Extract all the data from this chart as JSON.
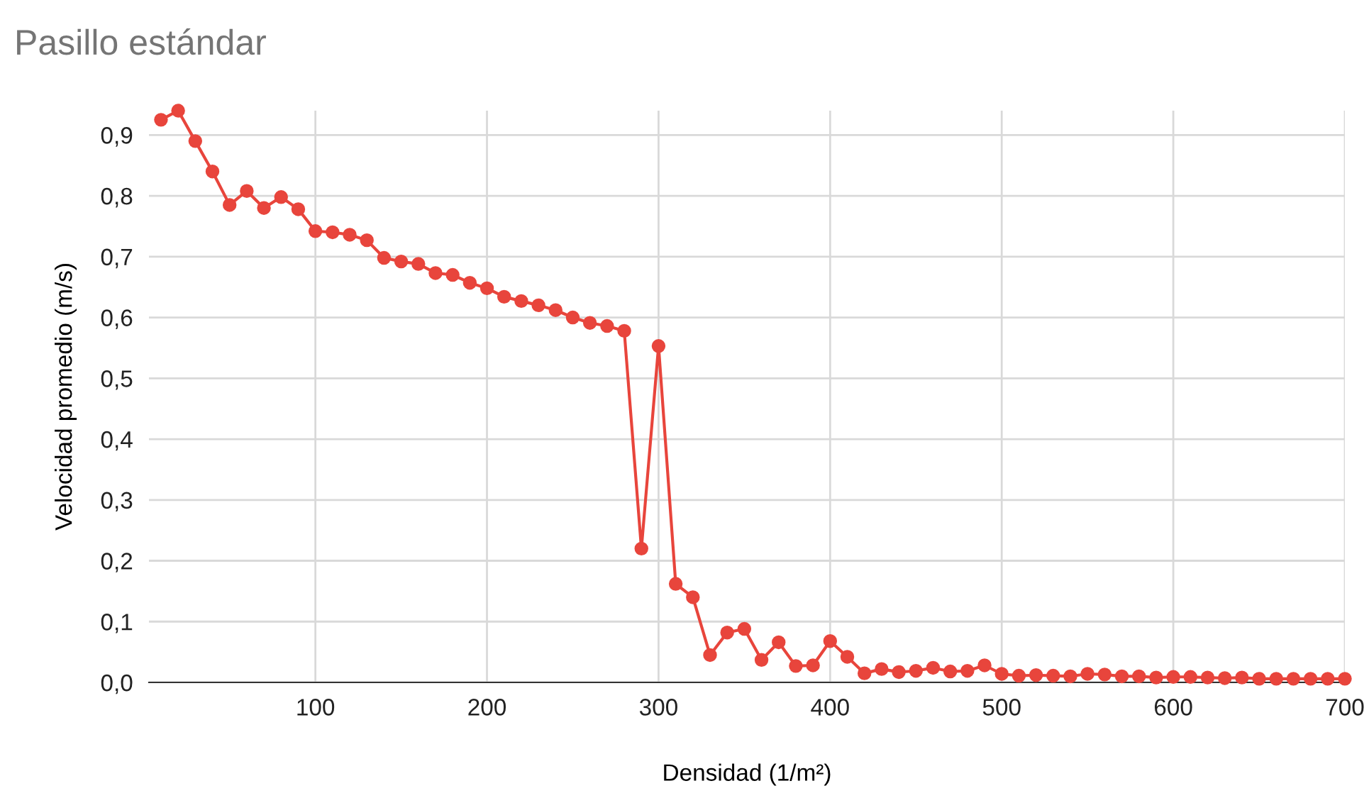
{
  "chart_data": {
    "type": "line",
    "title": "Pasillo estándar",
    "xlabel": "Densidad (1/m²)",
    "ylabel": "Velocidad promedio (m/s)",
    "x": [
      10,
      20,
      30,
      40,
      50,
      60,
      70,
      80,
      90,
      100,
      110,
      120,
      130,
      140,
      150,
      160,
      170,
      180,
      190,
      200,
      210,
      220,
      230,
      240,
      250,
      260,
      270,
      280,
      290,
      300,
      310,
      320,
      330,
      340,
      350,
      360,
      370,
      380,
      390,
      400,
      410,
      420,
      430,
      440,
      450,
      460,
      470,
      480,
      490,
      500,
      510,
      520,
      530,
      540,
      550,
      560,
      570,
      580,
      590,
      600,
      610,
      620,
      630,
      640,
      650,
      660,
      670,
      680,
      690,
      700
    ],
    "series": [
      {
        "color": "#e8453c",
        "values": [
          0.925,
          0.94,
          0.89,
          0.84,
          0.785,
          0.808,
          0.78,
          0.798,
          0.778,
          0.742,
          0.74,
          0.736,
          0.727,
          0.698,
          0.692,
          0.688,
          0.673,
          0.67,
          0.657,
          0.648,
          0.634,
          0.627,
          0.62,
          0.612,
          0.6,
          0.591,
          0.586,
          0.578,
          0.22,
          0.553,
          0.162,
          0.14,
          0.045,
          0.082,
          0.088,
          0.037,
          0.066,
          0.027,
          0.028,
          0.068,
          0.042,
          0.015,
          0.022,
          0.017,
          0.019,
          0.024,
          0.018,
          0.019,
          0.028,
          0.014,
          0.011,
          0.012,
          0.011,
          0.01,
          0.014,
          0.013,
          0.01,
          0.01,
          0.008,
          0.009,
          0.009,
          0.008,
          0.007,
          0.008,
          0.006,
          0.006,
          0.006,
          0.006,
          0.006,
          0.006
        ]
      }
    ],
    "xlim": [
      3,
      700
    ],
    "xticks": [
      100,
      200,
      300,
      400,
      500,
      600,
      700
    ],
    "ylim": [
      0,
      0.94
    ],
    "yticks": [
      {
        "value": 0,
        "label": "0,0"
      },
      {
        "value": 0.1,
        "label": "0,1"
      },
      {
        "value": 0.2,
        "label": "0,2"
      },
      {
        "value": 0.3,
        "label": "0,3"
      },
      {
        "value": 0.4,
        "label": "0,4"
      },
      {
        "value": 0.5,
        "label": "0,5"
      },
      {
        "value": 0.6,
        "label": "0,6"
      },
      {
        "value": 0.7,
        "label": "0,7"
      },
      {
        "value": 0.8,
        "label": "0,8"
      },
      {
        "value": 0.9,
        "label": "0,9"
      }
    ],
    "grid": true,
    "marker": "circle",
    "line_style": "solid"
  }
}
